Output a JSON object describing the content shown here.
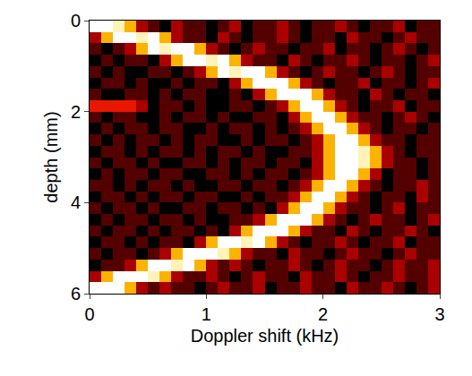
{
  "chart_data": {
    "type": "heatmap",
    "x_label": "Doppler shift (kHz)",
    "y_label": "depth (mm)",
    "color": "Hot",
    "xlim": [
      0,
      3
    ],
    "xticks": [
      0,
      1,
      2,
      3
    ],
    "ylim": [
      6,
      0
    ],
    "yticks": [
      0,
      2,
      4,
      6
    ],
    "x": [
      0.05,
      0.15,
      0.25,
      0.35,
      0.45,
      0.55,
      0.65,
      0.75,
      0.85,
      0.95,
      1.05,
      1.15,
      1.25,
      1.35,
      1.45,
      1.55,
      1.65,
      1.75,
      1.85,
      1.95,
      2.05,
      2.15,
      2.25,
      2.35,
      2.45,
      2.55,
      2.65,
      2.75,
      2.85,
      2.95
    ],
    "y": [
      0.125,
      0.375,
      0.625,
      0.875,
      1.125,
      1.375,
      1.625,
      1.875,
      2.125,
      2.375,
      2.625,
      2.875,
      3.125,
      3.375,
      3.625,
      3.875,
      4.125,
      4.375,
      4.625,
      4.875,
      5.125,
      5.375,
      5.625,
      5.875
    ],
    "z": [
      [
        9,
        9,
        8,
        5,
        2,
        1,
        0,
        2,
        1,
        1,
        0,
        1,
        2,
        0,
        1,
        1,
        2,
        1,
        0,
        1,
        1,
        2,
        1,
        0,
        1,
        1,
        2,
        0,
        1,
        1
      ],
      [
        2,
        5,
        9,
        9,
        8,
        9,
        5,
        2,
        1,
        1,
        0,
        2,
        1,
        0,
        1,
        1,
        2,
        1,
        0,
        1,
        1,
        0,
        2,
        1,
        1,
        0,
        1,
        2,
        1,
        1
      ],
      [
        1,
        0,
        1,
        2,
        5,
        9,
        8,
        9,
        9,
        5,
        2,
        1,
        0,
        1,
        2,
        1,
        1,
        0,
        1,
        1,
        2,
        0,
        1,
        1,
        0,
        1,
        2,
        1,
        0,
        1
      ],
      [
        0,
        1,
        0,
        1,
        1,
        0,
        2,
        5,
        9,
        9,
        8,
        9,
        5,
        2,
        1,
        1,
        0,
        2,
        1,
        0,
        1,
        1,
        2,
        1,
        0,
        1,
        1,
        0,
        1,
        2
      ],
      [
        1,
        0,
        1,
        0,
        0,
        1,
        1,
        0,
        1,
        2,
        5,
        9,
        8,
        9,
        9,
        5,
        2,
        1,
        0,
        1,
        2,
        1,
        1,
        0,
        1,
        2,
        1,
        0,
        1,
        1
      ],
      [
        0,
        1,
        1,
        0,
        1,
        0,
        0,
        1,
        0,
        1,
        1,
        0,
        2,
        5,
        9,
        9,
        9,
        5,
        2,
        1,
        0,
        1,
        1,
        2,
        0,
        1,
        1,
        0,
        1,
        2
      ],
      [
        1,
        0,
        0,
        1,
        1,
        0,
        1,
        0,
        1,
        1,
        0,
        0,
        1,
        0,
        2,
        5,
        9,
        9,
        9,
        5,
        2,
        1,
        1,
        0,
        2,
        1,
        0,
        1,
        1,
        0
      ],
      [
        3,
        3,
        3,
        3,
        2,
        0,
        1,
        1,
        0,
        1,
        0,
        0,
        1,
        1,
        0,
        1,
        2,
        5,
        9,
        9,
        5,
        2,
        1,
        0,
        1,
        1,
        2,
        0,
        1,
        1
      ],
      [
        1,
        0,
        1,
        1,
        0,
        0,
        1,
        0,
        1,
        1,
        0,
        1,
        0,
        0,
        1,
        1,
        0,
        2,
        5,
        9,
        9,
        5,
        2,
        1,
        1,
        0,
        1,
        2,
        1,
        0
      ],
      [
        0,
        1,
        0,
        1,
        1,
        0,
        1,
        1,
        0,
        0,
        1,
        0,
        1,
        1,
        0,
        1,
        0,
        1,
        2,
        5,
        9,
        9,
        5,
        2,
        1,
        0,
        1,
        1,
        0,
        1
      ],
      [
        1,
        0,
        1,
        0,
        1,
        1,
        0,
        1,
        0,
        1,
        1,
        0,
        0,
        1,
        0,
        1,
        1,
        0,
        1,
        2,
        5,
        9,
        9,
        5,
        2,
        1,
        1,
        0,
        1,
        1
      ],
      [
        0,
        1,
        1,
        0,
        1,
        0,
        1,
        1,
        0,
        1,
        0,
        1,
        1,
        0,
        1,
        0,
        0,
        1,
        1,
        2,
        5,
        9,
        9,
        8,
        5,
        2,
        1,
        0,
        1,
        1
      ],
      [
        1,
        0,
        1,
        1,
        0,
        1,
        0,
        0,
        1,
        1,
        0,
        1,
        0,
        1,
        1,
        0,
        1,
        1,
        0,
        2,
        5,
        9,
        9,
        8,
        5,
        2,
        1,
        1,
        0,
        1
      ],
      [
        0,
        1,
        0,
        1,
        1,
        0,
        1,
        1,
        0,
        0,
        1,
        1,
        0,
        1,
        0,
        1,
        1,
        0,
        1,
        2,
        5,
        9,
        9,
        5,
        2,
        0,
        1,
        1,
        0,
        1
      ],
      [
        1,
        1,
        0,
        1,
        0,
        1,
        1,
        0,
        1,
        0,
        0,
        1,
        1,
        0,
        1,
        1,
        0,
        1,
        2,
        5,
        9,
        9,
        5,
        2,
        1,
        0,
        1,
        1,
        2,
        1
      ],
      [
        0,
        1,
        1,
        0,
        1,
        0,
        1,
        1,
        0,
        1,
        1,
        0,
        0,
        1,
        0,
        1,
        1,
        2,
        5,
        9,
        9,
        5,
        2,
        1,
        0,
        1,
        1,
        0,
        2,
        1
      ],
      [
        1,
        0,
        1,
        1,
        0,
        1,
        0,
        0,
        1,
        1,
        0,
        1,
        1,
        0,
        1,
        0,
        2,
        5,
        9,
        9,
        5,
        2,
        1,
        1,
        0,
        1,
        2,
        0,
        1,
        1
      ],
      [
        0,
        1,
        0,
        1,
        1,
        0,
        1,
        1,
        0,
        1,
        0,
        0,
        1,
        1,
        2,
        5,
        9,
        9,
        9,
        5,
        2,
        1,
        0,
        1,
        2,
        1,
        1,
        0,
        1,
        2
      ],
      [
        1,
        0,
        1,
        1,
        0,
        1,
        0,
        1,
        1,
        0,
        1,
        0,
        2,
        5,
        9,
        9,
        9,
        5,
        2,
        1,
        1,
        0,
        2,
        1,
        0,
        1,
        1,
        2,
        1,
        0
      ],
      [
        0,
        1,
        1,
        0,
        1,
        0,
        1,
        1,
        0,
        2,
        5,
        9,
        9,
        8,
        9,
        5,
        2,
        1,
        0,
        1,
        1,
        2,
        1,
        0,
        1,
        1,
        2,
        0,
        1,
        1
      ],
      [
        1,
        0,
        1,
        1,
        0,
        1,
        2,
        5,
        9,
        9,
        9,
        8,
        5,
        2,
        1,
        1,
        0,
        2,
        1,
        1,
        0,
        1,
        2,
        1,
        1,
        0,
        1,
        2,
        1,
        1
      ],
      [
        0,
        1,
        1,
        2,
        5,
        9,
        9,
        8,
        9,
        5,
        2,
        1,
        2,
        1,
        0,
        1,
        1,
        2,
        1,
        0,
        1,
        2,
        1,
        1,
        0,
        1,
        2,
        1,
        1,
        2
      ],
      [
        2,
        5,
        9,
        9,
        9,
        8,
        5,
        2,
        1,
        1,
        2,
        1,
        0,
        1,
        2,
        1,
        1,
        0,
        2,
        1,
        1,
        2,
        1,
        0,
        1,
        1,
        2,
        1,
        1,
        2
      ],
      [
        9,
        9,
        9,
        5,
        2,
        1,
        2,
        1,
        1,
        0,
        1,
        2,
        1,
        1,
        2,
        0,
        1,
        1,
        2,
        1,
        1,
        0,
        2,
        1,
        1,
        2,
        1,
        0,
        1,
        2
      ]
    ]
  }
}
